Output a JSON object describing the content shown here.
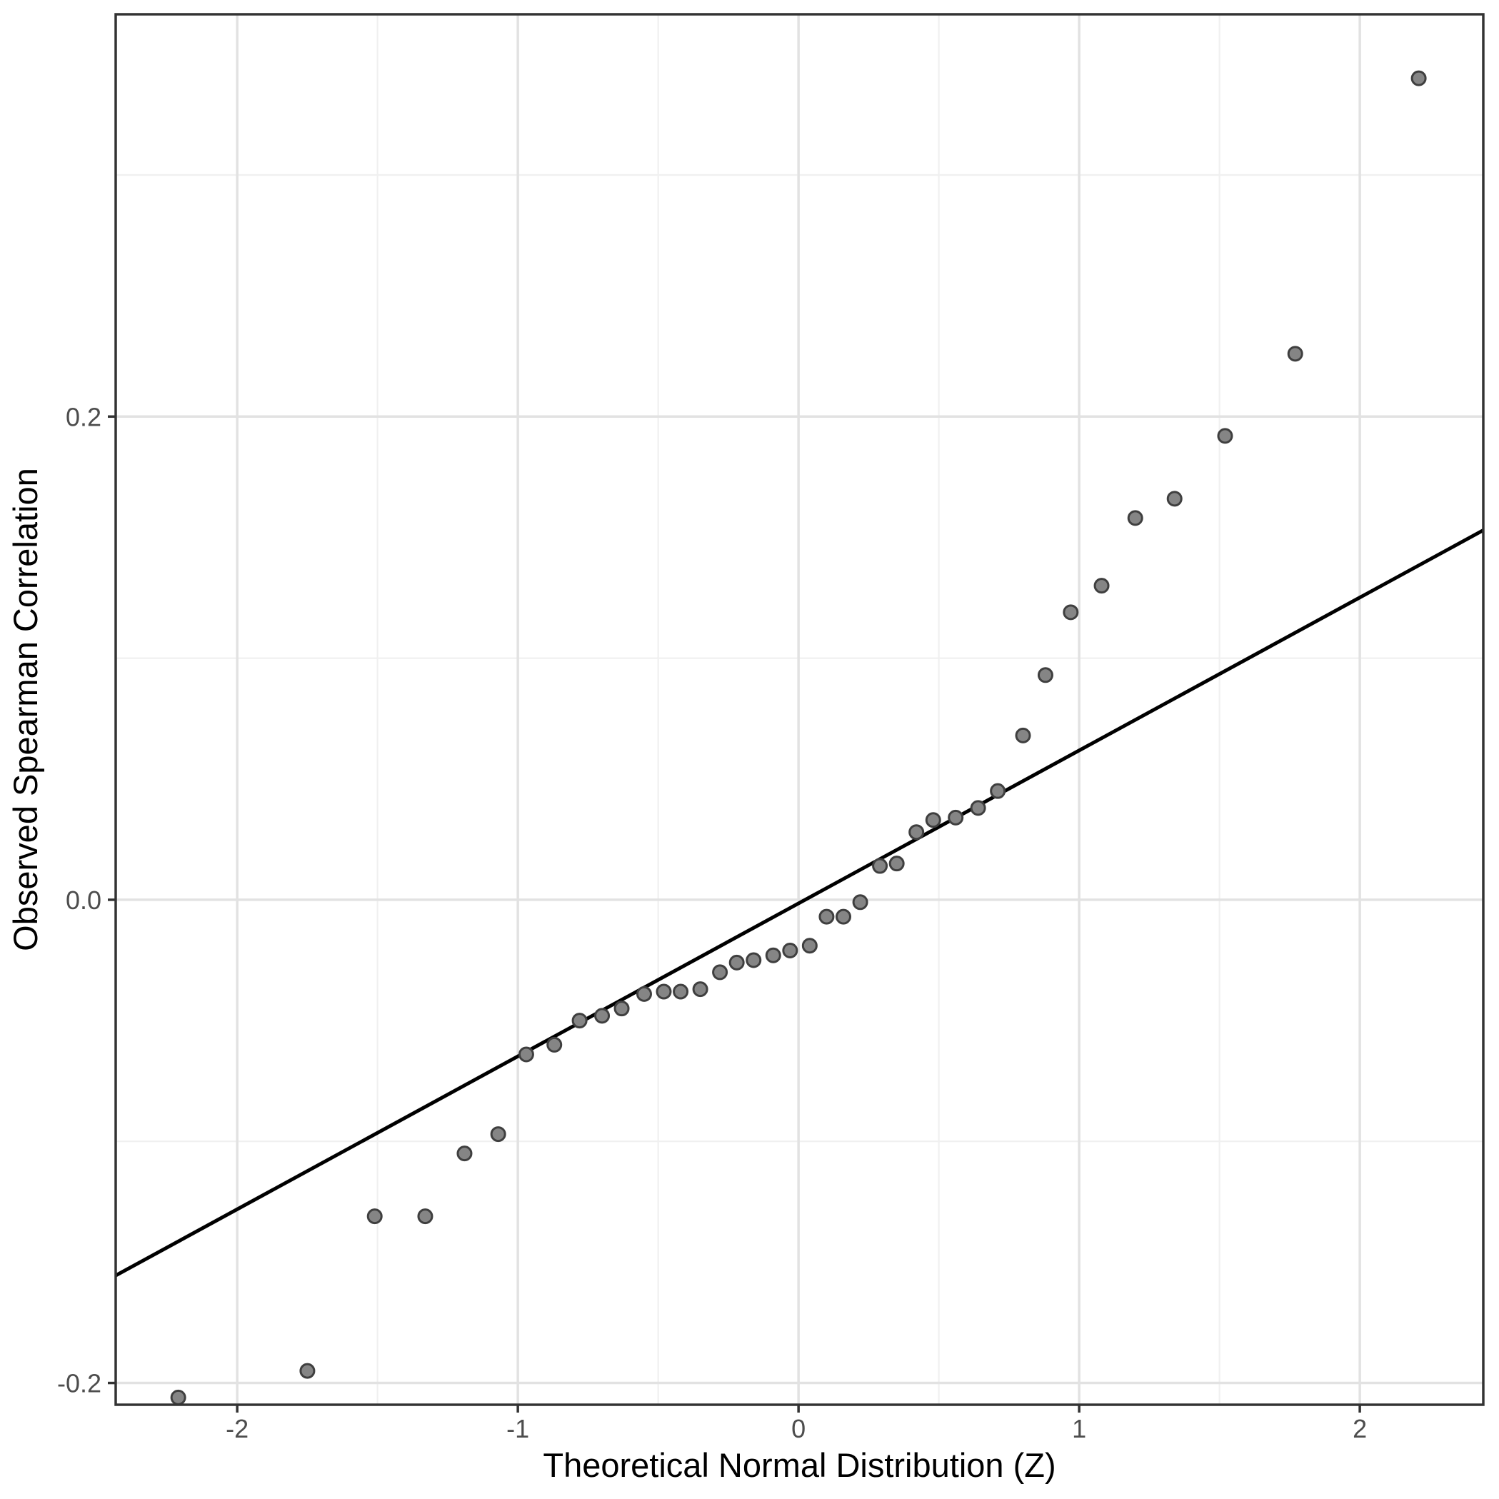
{
  "chart_data": {
    "type": "scatter",
    "title": "",
    "xlabel": "Theoretical Normal Distribution (Z)",
    "ylabel": "Observed Spearman Correlation",
    "grid": true,
    "legend": "none",
    "x_axis": {
      "range": [
        -2.433,
        2.44
      ],
      "ticks": [
        -2,
        -1,
        0,
        1,
        2
      ],
      "tick_labels": [
        "-2",
        "-1",
        "0",
        "1",
        "2"
      ],
      "minor_ticks": [
        -1.5,
        -0.5,
        0.5,
        1.5
      ]
    },
    "y_axis": {
      "range": [
        -0.209,
        0.3665
      ],
      "ticks": [
        0.2,
        0.0,
        -0.2
      ],
      "tick_labels": [
        "0.2",
        "0.0",
        "-0.2"
      ],
      "minor_ticks": [
        0.3,
        0.1,
        -0.1
      ]
    },
    "reference_line": {
      "slope": 0.0633,
      "intercept": -0.0015
    },
    "points": [
      [
        -2.21,
        -0.206
      ],
      [
        -1.75,
        -0.195
      ],
      [
        -1.51,
        -0.131
      ],
      [
        -1.33,
        -0.131
      ],
      [
        -1.19,
        -0.105
      ],
      [
        -1.07,
        -0.097
      ],
      [
        -0.97,
        -0.064
      ],
      [
        -0.87,
        -0.06
      ],
      [
        -0.78,
        -0.05
      ],
      [
        -0.7,
        -0.048
      ],
      [
        -0.63,
        -0.045
      ],
      [
        -0.55,
        -0.039
      ],
      [
        -0.48,
        -0.038
      ],
      [
        -0.42,
        -0.038
      ],
      [
        -0.35,
        -0.037
      ],
      [
        -0.28,
        -0.03
      ],
      [
        -0.22,
        -0.026
      ],
      [
        -0.16,
        -0.025
      ],
      [
        -0.09,
        -0.023
      ],
      [
        -0.03,
        -0.021
      ],
      [
        0.04,
        -0.019
      ],
      [
        0.1,
        -0.007
      ],
      [
        0.16,
        -0.007
      ],
      [
        0.22,
        -0.001
      ],
      [
        0.29,
        0.014
      ],
      [
        0.35,
        0.015
      ],
      [
        0.42,
        0.028
      ],
      [
        0.48,
        0.033
      ],
      [
        0.56,
        0.034
      ],
      [
        0.64,
        0.038
      ],
      [
        0.71,
        0.045
      ],
      [
        0.8,
        0.068
      ],
      [
        0.88,
        0.093
      ],
      [
        0.97,
        0.119
      ],
      [
        1.08,
        0.13
      ],
      [
        1.2,
        0.158
      ],
      [
        1.34,
        0.166
      ],
      [
        1.52,
        0.192
      ],
      [
        1.77,
        0.226
      ],
      [
        2.21,
        0.34
      ]
    ]
  },
  "style": {
    "background_color": "#ffffff",
    "panel_background": "#ffffff",
    "major_grid_color": "#e2e2e2",
    "minor_grid_color": "#f0f0f0",
    "panel_border_color": "#333333",
    "tick_color": "#333333",
    "tick_label_color": "#4d4d4d",
    "axis_title_color": "#000000",
    "point_fill": "#858585",
    "point_stroke": "#3f3f3f",
    "line_color": "#000000"
  }
}
